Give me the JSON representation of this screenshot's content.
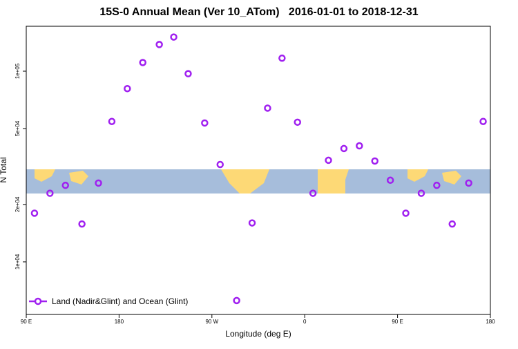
{
  "chart_data": {
    "type": "scatter",
    "title": "15S-0 Annual Mean (Ver 10_ATom)   2016-01-01 to 2018-12-31",
    "x_label": "Longitude (deg E)",
    "y_label": "N Total",
    "xlim": [
      90,
      540
    ],
    "xticks": [
      {
        "value": 90,
        "label": "90 E"
      },
      180,
      {
        "value": 270,
        "label": "90 W"
      },
      {
        "value": 360,
        "label": "0"
      },
      {
        "value": 450,
        "label": "90 E"
      },
      {
        "value": 540,
        "label": "180"
      }
    ],
    "ylim": [
      5300,
      172000
    ],
    "ylog": true,
    "yticks": [
      {
        "value": 10000,
        "label": "1e+04"
      },
      {
        "value": 20000,
        "label": "2e+04"
      },
      {
        "value": 50000,
        "label": "5e+04"
      },
      {
        "value": 100000,
        "label": "1e+05"
      }
    ],
    "legend": "bottomleft",
    "series": [
      {
        "name": "Land (Nadir&Glint) and Ocean (Glint)",
        "color": "#a020f0",
        "x": [
          98,
          113,
          128,
          144,
          160,
          173,
          188,
          203,
          219,
          233,
          247,
          263,
          278,
          294,
          309,
          324,
          338,
          353,
          368,
          383,
          398,
          413,
          428,
          443,
          458,
          473,
          488,
          503,
          519,
          533
        ],
        "values": [
          18000,
          22900,
          25200,
          15800,
          25900,
          54500,
          81000,
          111000,
          138000,
          151000,
          97000,
          53500,
          32400,
          6270,
          16000,
          64000,
          117000,
          54000,
          22900,
          34100,
          39300,
          40600,
          33800,
          26800,
          18000,
          22900,
          25200,
          15800,
          25900,
          54500
        ]
      }
    ]
  }
}
